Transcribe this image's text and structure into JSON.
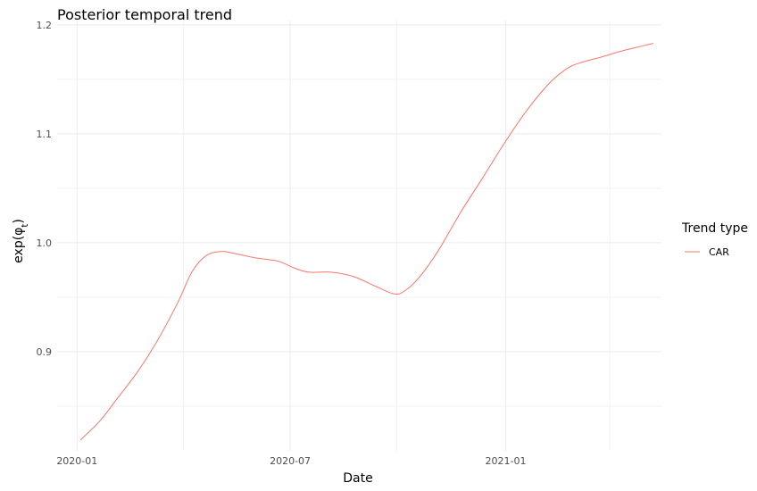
{
  "chart_data": {
    "type": "line",
    "title": "Posterior temporal trend",
    "xlabel": "Date",
    "ylabel_prefix": "exp(",
    "ylabel_symbol": "φ",
    "ylabel_subscript": "t",
    "ylabel_suffix": ")",
    "x_type": "date",
    "xlim": [
      "2019-12-15",
      "2021-05-14"
    ],
    "ylim": [
      0.809,
      1.204
    ],
    "x_ticks": [
      "2020-01-01",
      "2020-07-01",
      "2021-01-01"
    ],
    "x_tick_labels": [
      "2020-01",
      "2020-07",
      "2021-01"
    ],
    "y_ticks": [
      0.9,
      1.0,
      1.1,
      1.2
    ],
    "y_tick_labels": [
      "0.9",
      "1.0",
      "1.1",
      "1.2"
    ],
    "grid": true,
    "legend": {
      "title": "Trend type",
      "position": "right"
    },
    "series": [
      {
        "name": "CAR",
        "color": "#f8766d",
        "x": [
          "2020-01-04",
          "2020-01-21",
          "2020-02-05",
          "2020-02-22",
          "2020-03-09",
          "2020-03-27",
          "2020-04-08",
          "2020-04-20",
          "2020-05-03",
          "2020-05-15",
          "2020-06-02",
          "2020-06-21",
          "2020-07-04",
          "2020-07-17",
          "2020-08-05",
          "2020-08-24",
          "2020-09-12",
          "2020-09-28",
          "2020-10-07",
          "2020-10-19",
          "2020-11-04",
          "2020-11-23",
          "2020-12-12",
          "2020-12-30",
          "2021-01-18",
          "2021-02-06",
          "2021-02-21",
          "2021-03-05",
          "2021-03-22",
          "2021-04-10",
          "2021-04-29",
          "2021-05-07"
        ],
        "values": [
          0.819,
          0.837,
          0.858,
          0.882,
          0.909,
          0.945,
          0.973,
          0.988,
          0.992,
          0.99,
          0.986,
          0.983,
          0.977,
          0.973,
          0.973,
          0.969,
          0.96,
          0.953,
          0.956,
          0.968,
          0.992,
          1.027,
          1.059,
          1.09,
          1.12,
          1.145,
          1.159,
          1.165,
          1.17,
          1.176,
          1.181,
          1.183
        ]
      }
    ]
  }
}
